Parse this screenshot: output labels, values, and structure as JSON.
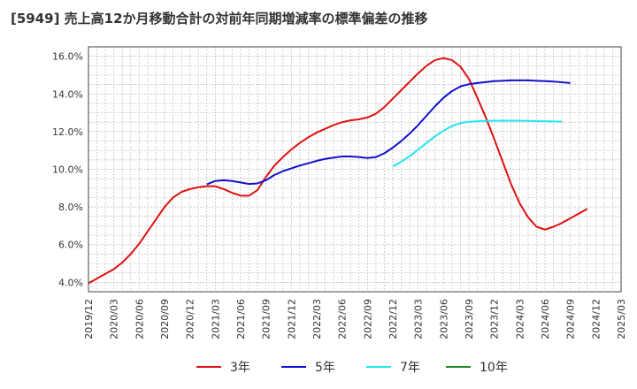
{
  "title": "[5949]  売上高12か月移動合計の対前年同期増減率の標準偏差の推移",
  "chart_data": {
    "type": "line",
    "title": "[5949]  売上高12か月移動合計の対前年同期増減率の標準偏差の推移",
    "xlabel": "",
    "ylabel": "",
    "ylim": [
      3.5,
      16.5
    ],
    "yticks": [
      "4.0%",
      "6.0%",
      "8.0%",
      "10.0%",
      "12.0%",
      "14.0%",
      "16.0%"
    ],
    "ytick_values": [
      4,
      6,
      8,
      10,
      12,
      14,
      16
    ],
    "xticks": [
      "2019/12",
      "2020/03",
      "2020/06",
      "2020/09",
      "2020/12",
      "2021/03",
      "2021/06",
      "2021/09",
      "2021/12",
      "2022/03",
      "2022/06",
      "2022/09",
      "2022/12",
      "2023/03",
      "2023/06",
      "2023/09",
      "2023/12",
      "2024/03",
      "2024/06",
      "2024/09",
      "2024/12",
      "2025/03"
    ],
    "grid": true,
    "legend_position": "bottom",
    "series": [
      {
        "name": "3年",
        "color": "#dd1111",
        "start": "2019/12",
        "values": [
          3.95,
          4.2,
          4.45,
          4.7,
          5.05,
          5.5,
          6.05,
          6.7,
          7.35,
          8.0,
          8.5,
          8.8,
          8.95,
          9.05,
          9.1,
          9.1,
          8.95,
          8.75,
          8.6,
          8.6,
          8.9,
          9.6,
          10.2,
          10.65,
          11.05,
          11.4,
          11.7,
          11.95,
          12.15,
          12.35,
          12.5,
          12.6,
          12.65,
          12.75,
          12.95,
          13.3,
          13.75,
          14.2,
          14.65,
          15.1,
          15.5,
          15.8,
          15.9,
          15.8,
          15.45,
          14.8,
          13.8,
          12.75,
          11.6,
          10.4,
          9.2,
          8.2,
          7.45,
          6.95,
          6.8,
          6.95,
          7.15,
          7.4,
          7.65,
          7.9
        ]
      },
      {
        "name": "5年",
        "color": "#1111cc",
        "start": "2021/02",
        "values": [
          9.2,
          9.38,
          9.42,
          9.38,
          9.3,
          9.22,
          9.25,
          9.42,
          9.7,
          9.9,
          10.05,
          10.2,
          10.32,
          10.45,
          10.55,
          10.62,
          10.68,
          10.68,
          10.65,
          10.6,
          10.65,
          10.85,
          11.15,
          11.5,
          11.9,
          12.35,
          12.85,
          13.35,
          13.8,
          14.15,
          14.4,
          14.52,
          14.58,
          14.63,
          14.68,
          14.7,
          14.72,
          14.72,
          14.72,
          14.7,
          14.68,
          14.66,
          14.62,
          14.58
        ]
      },
      {
        "name": "7年",
        "color": "#22e5ee",
        "start": "2022/12",
        "values": [
          10.15,
          10.4,
          10.7,
          11.05,
          11.4,
          11.75,
          12.05,
          12.3,
          12.45,
          12.52,
          12.55,
          12.57,
          12.58,
          12.58,
          12.58,
          12.58,
          12.57,
          12.56,
          12.55,
          12.54,
          12.53
        ]
      },
      {
        "name": "10年",
        "color": "#228822",
        "start": "2019/12",
        "values": []
      }
    ]
  }
}
